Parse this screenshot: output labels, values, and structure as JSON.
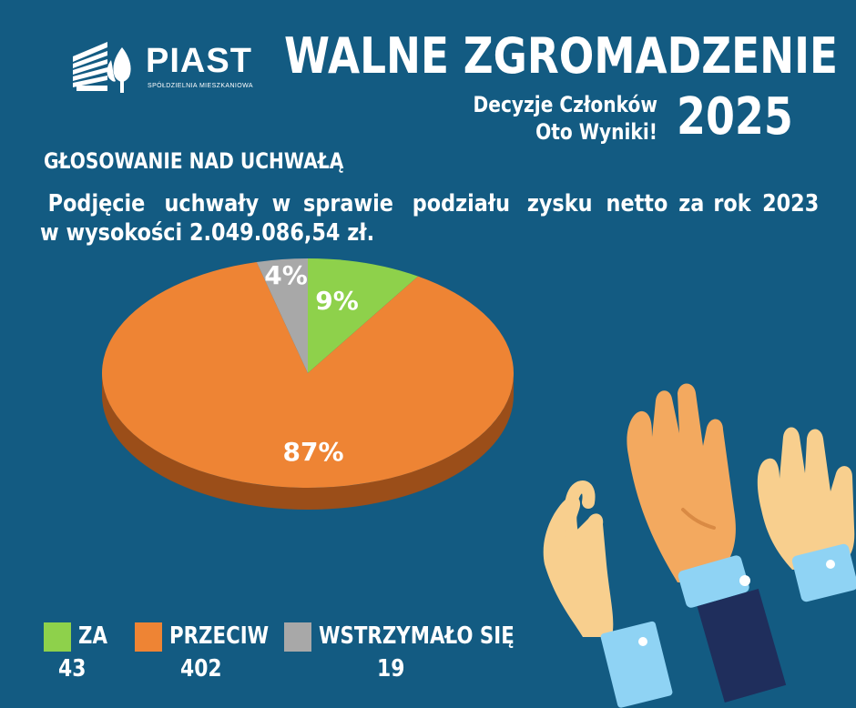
{
  "brand": {
    "name": "PIAST",
    "subtitle": "SPÓŁDZIELNIA MIESZKANIOWA"
  },
  "header": {
    "title": "WALNE ZGROMADZENIE",
    "subtitle_line1": "Decyzje Członków",
    "subtitle_line2": "Oto Wyniki!",
    "year": "2025"
  },
  "section_label": "GŁOSOWANIE NAD UCHWAŁĄ",
  "question": {
    "line1": "Podjęcie uchwały w sprawie podziału zysku netto za rok 2023",
    "line2": "w wysokości 2.049.086,54 zł."
  },
  "chart_data": {
    "type": "pie",
    "title": "",
    "slices": [
      {
        "name": "ZA",
        "label": "9%",
        "percent": 9,
        "count": "43",
        "color": "#8ed14b"
      },
      {
        "name": "PRZECIW",
        "label": "87%",
        "percent": 87,
        "count": "402",
        "color": "#ee8434"
      },
      {
        "name": "WSTRZYMAŁO SIĘ",
        "label": "4%",
        "percent": 4,
        "count": "19",
        "color": "#a8a8a8"
      }
    ],
    "legend_position": "bottom-left"
  },
  "colors": {
    "background": "#135b82",
    "text": "#ffffff"
  },
  "decoration": {
    "illustration": "raised-hands-illustration",
    "logo_icon": "building-tree-logo-icon"
  }
}
